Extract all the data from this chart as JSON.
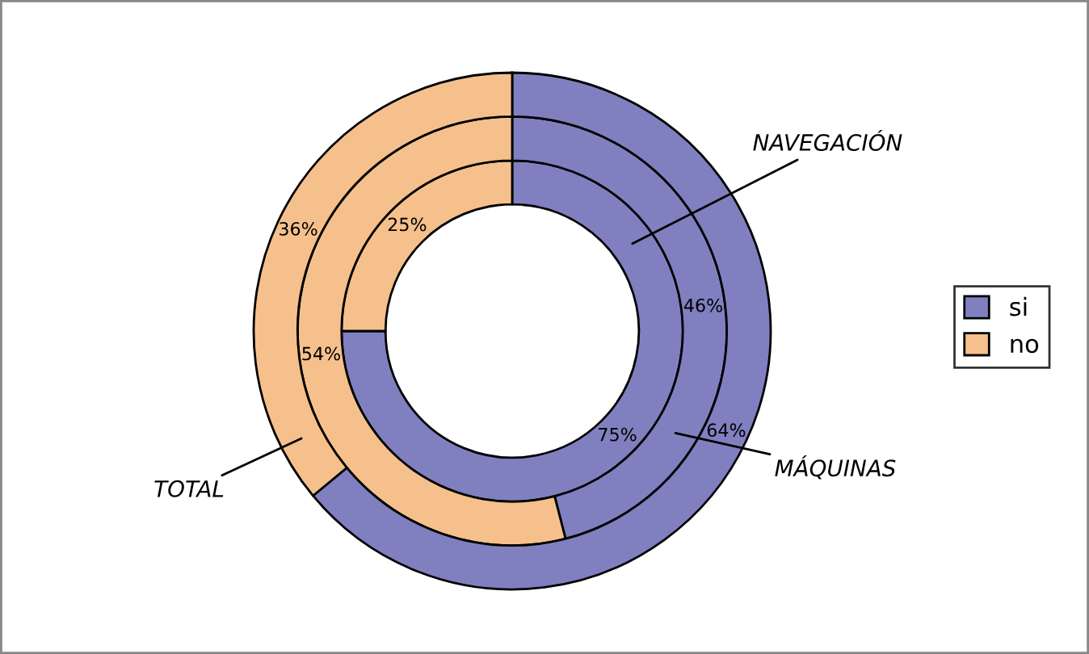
{
  "chart_data": {
    "type": "donut",
    "categories": [
      "si",
      "no"
    ],
    "colors": [
      "#8080c0",
      "#f5c08c"
    ],
    "legend": "right",
    "series": [
      {
        "name": "NAVEGACIÓN",
        "values": [
          75,
          25
        ],
        "value_labels": [
          "75%",
          "25%"
        ]
      },
      {
        "name": "MÁQUINAS",
        "values": [
          46,
          54
        ],
        "value_labels": [
          "46%",
          "54%"
        ]
      },
      {
        "name": "TOTAL",
        "values": [
          64,
          36
        ],
        "value_labels": [
          "64%",
          "36%"
        ]
      }
    ]
  }
}
